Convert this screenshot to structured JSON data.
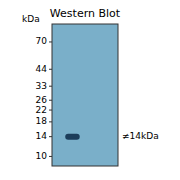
{
  "chart_data": {
    "type": "blot",
    "title": "Western Blot",
    "y_label": "kDa",
    "log": "y",
    "ylim": [
      8.5,
      95
    ],
    "yticks": [
      70,
      44,
      33,
      26,
      22,
      18,
      14,
      10
    ],
    "values": [
      14
    ],
    "color": "#1c3d5a",
    "annotations": [
      {
        "text": "≠14kDa",
        "y": 14
      }
    ],
    "grid": false,
    "tick_labels": "y"
  }
}
